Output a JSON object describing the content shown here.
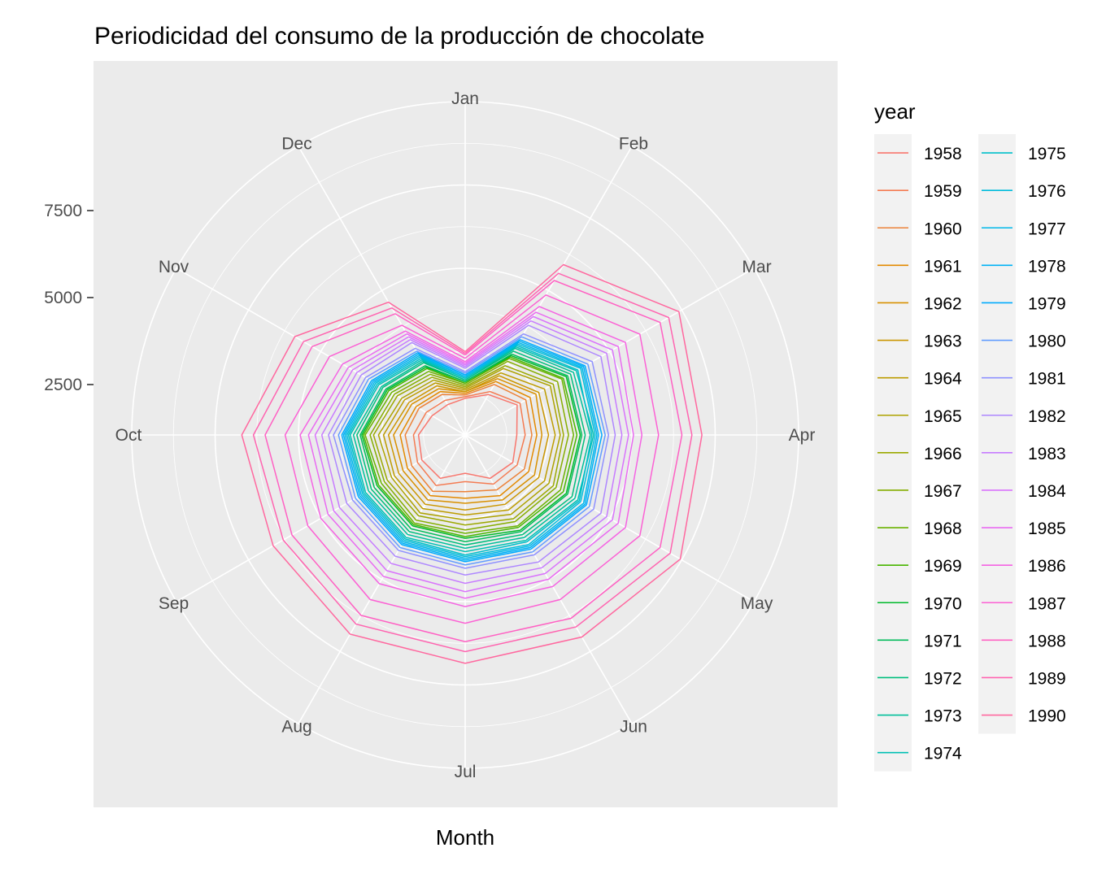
{
  "chart_data": {
    "type": "line",
    "coord": "polar",
    "title": "Periodicidad del consumo de la producción de chocolate",
    "xlabel": "Month",
    "ylabel": "",
    "categories": [
      "Jan",
      "Feb",
      "Mar",
      "Apr",
      "May",
      "Jun",
      "Jul",
      "Aug",
      "Sep",
      "Oct",
      "Nov",
      "Dec"
    ],
    "r_ticks": [
      2500,
      5000,
      7500
    ],
    "r_tick_labels": [
      "2500",
      "5000",
      "7500"
    ],
    "rlim": [
      0,
      10000
    ],
    "grid": true,
    "legend": {
      "title": "year",
      "position": "right",
      "columns": 2
    },
    "series": [
      {
        "name": "1958",
        "color": "#F8766D",
        "values": [
          1100,
          1400,
          1800,
          1550,
          1650,
          1500,
          1150,
          1500,
          1500,
          1400,
          1150,
          1050
        ]
      },
      {
        "name": "1959",
        "color": "#F47B52",
        "values": [
          1150,
          1500,
          1900,
          1800,
          1800,
          1700,
          1400,
          1750,
          1650,
          1550,
          1350,
          1200
        ]
      },
      {
        "name": "1960",
        "color": "#EC8239",
        "values": [
          1200,
          1750,
          2100,
          2000,
          2050,
          1900,
          1700,
          1950,
          1850,
          1800,
          1600,
          1400
        ]
      },
      {
        "name": "1961",
        "color": "#E38900",
        "values": [
          1250,
          1850,
          2250,
          2150,
          2200,
          2100,
          1900,
          2100,
          2000,
          1950,
          1700,
          1500
        ]
      },
      {
        "name": "1962",
        "color": "#D89000",
        "values": [
          1300,
          1950,
          2450,
          2300,
          2400,
          2250,
          2050,
          2250,
          2150,
          2150,
          1850,
          1600
        ]
      },
      {
        "name": "1963",
        "color": "#CB9600",
        "values": [
          1300,
          2050,
          2550,
          2500,
          2550,
          2400,
          2250,
          2400,
          2300,
          2300,
          1950,
          1700
        ]
      },
      {
        "name": "1964",
        "color": "#BD9C00",
        "values": [
          1350,
          2150,
          2750,
          2700,
          2750,
          2600,
          2400,
          2550,
          2450,
          2450,
          2100,
          1800
        ]
      },
      {
        "name": "1965",
        "color": "#ADA200",
        "values": [
          1400,
          2300,
          2950,
          2850,
          2900,
          2750,
          2550,
          2700,
          2550,
          2600,
          2200,
          1900
        ]
      },
      {
        "name": "1966",
        "color": "#9BA800",
        "values": [
          1450,
          2400,
          3050,
          2950,
          3050,
          2900,
          2700,
          2800,
          2700,
          2750,
          2350,
          2000
        ]
      },
      {
        "name": "1967",
        "color": "#85AD00",
        "values": [
          1500,
          2550,
          3200,
          3100,
          3150,
          3000,
          2850,
          2950,
          2800,
          2850,
          2450,
          2100
        ]
      },
      {
        "name": "1968",
        "color": "#6BB100",
        "values": [
          1550,
          2650,
          3350,
          3250,
          3300,
          3150,
          2950,
          3050,
          2900,
          3000,
          2550,
          2200
        ]
      },
      {
        "name": "1969",
        "color": "#48B500",
        "values": [
          1550,
          2700,
          3400,
          3350,
          3400,
          3200,
          3050,
          3100,
          3000,
          3050,
          2650,
          2300
        ]
      },
      {
        "name": "1970",
        "color": "#00B92A",
        "values": [
          1600,
          2750,
          3500,
          3450,
          3500,
          3300,
          3100,
          3150,
          3050,
          3100,
          2700,
          2350
        ]
      },
      {
        "name": "1971",
        "color": "#00BB5A",
        "values": [
          1600,
          2800,
          3550,
          3500,
          3550,
          3350,
          3200,
          3250,
          3150,
          3150,
          2750,
          2400
        ]
      },
      {
        "name": "1972",
        "color": "#00BE7D",
        "values": [
          1650,
          2900,
          3650,
          3600,
          3700,
          3450,
          3300,
          3350,
          3250,
          3250,
          2850,
          2500
        ]
      },
      {
        "name": "1973",
        "color": "#00BF9A",
        "values": [
          1650,
          3000,
          3750,
          3750,
          3800,
          3550,
          3400,
          3450,
          3350,
          3350,
          2900,
          2550
        ]
      },
      {
        "name": "1974",
        "color": "#00C0B4",
        "values": [
          1700,
          3050,
          3850,
          3850,
          3900,
          3650,
          3500,
          3550,
          3450,
          3450,
          3000,
          2600
        ]
      },
      {
        "name": "1975",
        "color": "#00BFCA",
        "values": [
          1700,
          3100,
          3900,
          3800,
          3950,
          3700,
          3600,
          3600,
          3500,
          3500,
          3050,
          2650
        ]
      },
      {
        "name": "1976",
        "color": "#00BCDC",
        "values": [
          1750,
          3150,
          4000,
          3900,
          4000,
          3800,
          3650,
          3650,
          3550,
          3550,
          3100,
          2700
        ]
      },
      {
        "name": "1977",
        "color": "#00B8EA",
        "values": [
          1750,
          3200,
          4050,
          3950,
          4100,
          3850,
          3700,
          3700,
          3600,
          3600,
          3150,
          2750
        ]
      },
      {
        "name": "1978",
        "color": "#00B2F5",
        "values": [
          1800,
          3250,
          4100,
          4000,
          4150,
          3900,
          3750,
          3750,
          3650,
          3650,
          3200,
          2800
        ]
      },
      {
        "name": "1979",
        "color": "#00ABFD",
        "values": [
          1800,
          3300,
          4150,
          4100,
          4200,
          3950,
          3800,
          3800,
          3700,
          3700,
          3250,
          2850
        ]
      },
      {
        "name": "1980",
        "color": "#619CFF",
        "values": [
          1850,
          3400,
          4250,
          4200,
          4300,
          4050,
          3900,
          3900,
          3800,
          3800,
          3350,
          2900
        ]
      },
      {
        "name": "1981",
        "color": "#8F91FF",
        "values": [
          1900,
          3500,
          4400,
          4300,
          4450,
          4150,
          4000,
          4000,
          3900,
          3950,
          3450,
          3000
        ]
      },
      {
        "name": "1982",
        "color": "#AE87FF",
        "values": [
          2000,
          3800,
          4700,
          4500,
          4700,
          4400,
          4200,
          4200,
          4100,
          4100,
          3600,
          3200
        ]
      },
      {
        "name": "1983",
        "color": "#C77CFF",
        "values": [
          2050,
          3950,
          4900,
          4700,
          4900,
          4600,
          4450,
          4450,
          4350,
          4300,
          3750,
          3300
        ]
      },
      {
        "name": "1984",
        "color": "#D973FC",
        "values": [
          2100,
          4100,
          5100,
          4900,
          5100,
          4800,
          4700,
          4700,
          4550,
          4500,
          3900,
          3400
        ]
      },
      {
        "name": "1985",
        "color": "#E96BF1",
        "values": [
          2150,
          4250,
          5300,
          5050,
          5300,
          5000,
          4900,
          4900,
          4750,
          4700,
          4050,
          3500
        ]
      },
      {
        "name": "1986",
        "color": "#F564E3",
        "values": [
          2200,
          4450,
          5550,
          5300,
          5550,
          5250,
          5150,
          5150,
          5000,
          4950,
          4250,
          3600
        ]
      },
      {
        "name": "1987",
        "color": "#FC61D4",
        "values": [
          2300,
          4850,
          6050,
          5800,
          6050,
          5700,
          5650,
          5700,
          5450,
          5400,
          4700,
          3800
        ]
      },
      {
        "name": "1988",
        "color": "#FF61C3",
        "values": [
          2400,
          5350,
          6750,
          6500,
          6750,
          6350,
          6200,
          6250,
          6000,
          6000,
          5300,
          4200
        ]
      },
      {
        "name": "1989",
        "color": "#FF64B0",
        "values": [
          2450,
          5600,
          7050,
          6800,
          7100,
          6650,
          6500,
          6550,
          6300,
          6350,
          5600,
          4400
        ]
      },
      {
        "name": "1990",
        "color": "#FF689F",
        "values": [
          2500,
          5900,
          7400,
          7100,
          7450,
          7000,
          6850,
          6900,
          6650,
          6700,
          5900,
          4600
        ]
      }
    ]
  }
}
